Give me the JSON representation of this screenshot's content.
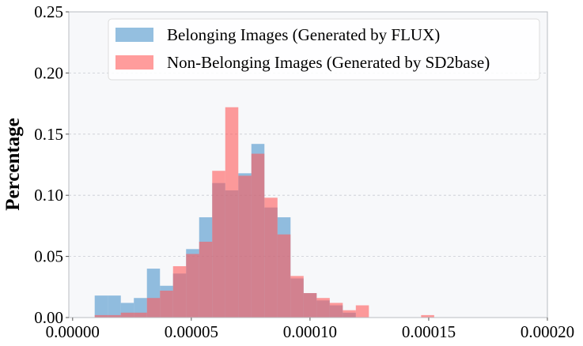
{
  "chart_data": {
    "type": "bar",
    "subtype": "overlapping-histogram",
    "title": "",
    "xlabel": "",
    "ylabel": "Percentage",
    "xlim": [
      -1.6e-06,
      0.0002
    ],
    "ylim": [
      0,
      0.25
    ],
    "grid": "horizontal dashed",
    "legend_position": "top-center",
    "bin_width": 5.5e-06,
    "xticks": [
      "0.00000",
      "0.00005",
      "0.00010",
      "0.00015",
      "0.00020"
    ],
    "yticks": [
      "0.00",
      "0.05",
      "0.10",
      "0.15",
      "0.20",
      "0.25"
    ],
    "series": [
      {
        "name": "Belonging Images (Generated by FLUX)",
        "color": "#3d8ac6",
        "opacity": 0.55,
        "bins": [
          {
            "x0": 9.3e-06,
            "y": 0.018
          },
          {
            "x0": 1.48e-05,
            "y": 0.018
          },
          {
            "x0": 2.03e-05,
            "y": 0.012
          },
          {
            "x0": 2.58e-05,
            "y": 0.016
          },
          {
            "x0": 3.13e-05,
            "y": 0.04
          },
          {
            "x0": 3.68e-05,
            "y": 0.026
          },
          {
            "x0": 4.23e-05,
            "y": 0.036
          },
          {
            "x0": 4.78e-05,
            "y": 0.056
          },
          {
            "x0": 5.33e-05,
            "y": 0.082
          },
          {
            "x0": 5.88e-05,
            "y": 0.11
          },
          {
            "x0": 6.43e-05,
            "y": 0.104
          },
          {
            "x0": 6.98e-05,
            "y": 0.118
          },
          {
            "x0": 7.53e-05,
            "y": 0.142
          },
          {
            "x0": 8.08e-05,
            "y": 0.09
          },
          {
            "x0": 8.63e-05,
            "y": 0.082
          },
          {
            "x0": 9.18e-05,
            "y": 0.032
          },
          {
            "x0": 9.73e-05,
            "y": 0.02
          },
          {
            "x0": 0.0001028,
            "y": 0.014
          },
          {
            "x0": 0.0001083,
            "y": 0.01
          },
          {
            "x0": 0.0001138,
            "y": 0.004
          }
        ]
      },
      {
        "name": "Non-Belonging Images (Generated by SD2base)",
        "color": "#ff5a5a",
        "opacity": 0.6,
        "bins": [
          {
            "x0": 9.3e-06,
            "y": 0.002
          },
          {
            "x0": 1.48e-05,
            "y": 0.002
          },
          {
            "x0": 2.03e-05,
            "y": 0.004
          },
          {
            "x0": 2.58e-05,
            "y": 0.004
          },
          {
            "x0": 3.13e-05,
            "y": 0.016
          },
          {
            "x0": 3.68e-05,
            "y": 0.022
          },
          {
            "x0": 4.23e-05,
            "y": 0.042
          },
          {
            "x0": 4.78e-05,
            "y": 0.052
          },
          {
            "x0": 5.33e-05,
            "y": 0.062
          },
          {
            "x0": 5.88e-05,
            "y": 0.12
          },
          {
            "x0": 6.43e-05,
            "y": 0.172
          },
          {
            "x0": 6.98e-05,
            "y": 0.116
          },
          {
            "x0": 7.53e-05,
            "y": 0.134
          },
          {
            "x0": 8.08e-05,
            "y": 0.098
          },
          {
            "x0": 8.63e-05,
            "y": 0.068
          },
          {
            "x0": 9.18e-05,
            "y": 0.034
          },
          {
            "x0": 9.73e-05,
            "y": 0.02
          },
          {
            "x0": 0.0001028,
            "y": 0.016
          },
          {
            "x0": 0.0001083,
            "y": 0.012
          },
          {
            "x0": 0.0001138,
            "y": 0.006
          },
          {
            "x0": 0.0001193,
            "y": 0.01
          },
          {
            "x0": 0.0001468,
            "y": 0.002
          }
        ]
      }
    ]
  }
}
